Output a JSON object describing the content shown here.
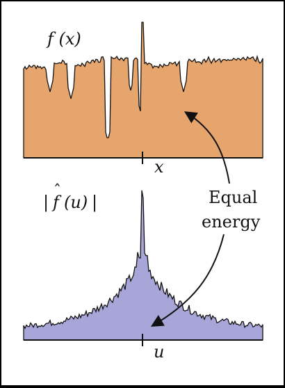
{
  "labels": {
    "fx": "f (x)",
    "x_axis": "x",
    "fhat_bar_left": "|",
    "fhat_hat": "ˆ",
    "fhat_f": "f",
    "fhat_arg": "(u)",
    "fhat_bar_right": "|",
    "u_axis": "u",
    "annotation_line1": "Equal",
    "annotation_line2": "energy"
  },
  "colors": {
    "signal_fill": "#e6a56c",
    "spectrum_fill": "#a8a6d8",
    "stroke": "#111111",
    "background": "#ffffff"
  }
}
